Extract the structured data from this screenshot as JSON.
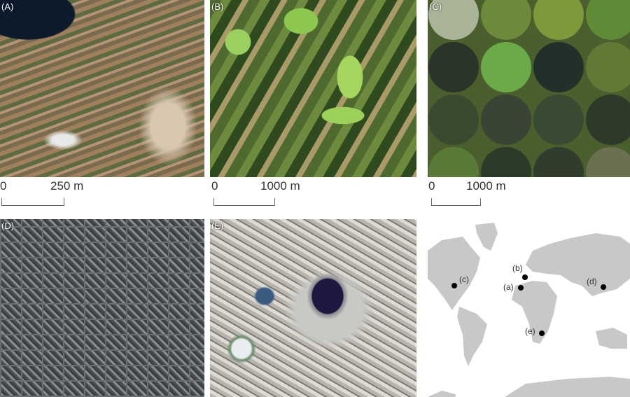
{
  "panels": [
    {
      "label": "(A)",
      "scale_start": "0",
      "scale_end": "250 m"
    },
    {
      "label": "(B)",
      "scale_start": "0",
      "scale_end": "1000 m"
    },
    {
      "label": "(C)",
      "scale_start": "0",
      "scale_end": "1000 m"
    },
    {
      "label": "(D)"
    },
    {
      "label": "(E)"
    }
  ],
  "map": {
    "land_color": "#c8c8c8",
    "marker_color": "#000000",
    "locations": [
      {
        "label": "(a)",
        "region": "Spain"
      },
      {
        "label": "(b)",
        "region": "France"
      },
      {
        "label": "(c)",
        "region": "United States"
      },
      {
        "label": "(d)",
        "region": "China"
      },
      {
        "label": "(e)",
        "region": "South Africa"
      }
    ]
  }
}
